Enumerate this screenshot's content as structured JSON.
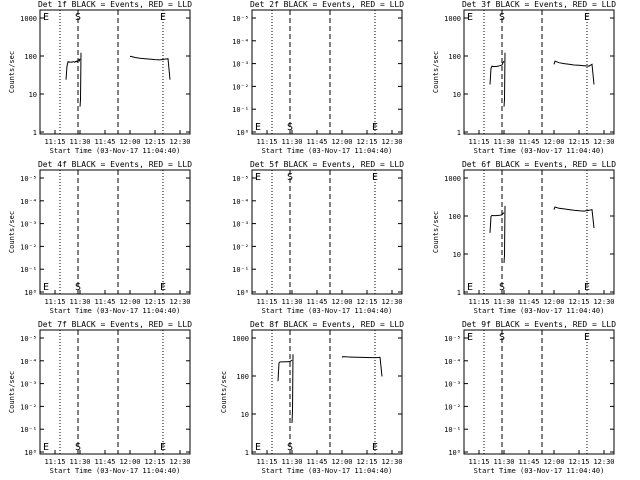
{
  "chart_data": [
    {
      "type": "line",
      "title": "Det 1f BLACK = Events, RED = LLD",
      "ylabel": "Counts/sec",
      "xlabel": "Start Time (03-Nov-17 11:04:40)",
      "y_scale": "log",
      "y_ticks": [
        "1",
        "10",
        "100",
        "1000"
      ],
      "x_ticks": [
        "11:15",
        "11:30",
        "11:45",
        "12:00",
        "12:15",
        "12:30"
      ],
      "markers": [
        "E",
        "S",
        "E"
      ],
      "line_style": "black",
      "series": [
        {
          "x": [
            11.36,
            11.37,
            11.38,
            11.385,
            11.39,
            11.42,
            11.43,
            11.44,
            11.445,
            11.45,
            11.455,
            11.46,
            11.465,
            11.47,
            11.475,
            11.48,
            11.485,
            11.49,
            11.495,
            11.5
          ],
          "y": [
            20,
            45,
            58,
            58,
            57,
            57,
            58,
            58,
            57,
            57,
            59,
            59,
            60,
            58,
            61,
            62,
            64,
            65,
            62,
            70
          ]
        },
        {
          "x": [
            11.5,
            11.505,
            11.51
          ],
          "y": [
            4,
            6,
            100
          ]
        },
        {
          "x": [
            12.0,
            12.01,
            12.05,
            12.1,
            12.15,
            12.2,
            12.25,
            12.3,
            12.35,
            12.38,
            12.4
          ],
          "y": [
            80,
            80,
            75,
            72,
            70,
            68,
            66,
            65,
            68,
            70,
            20
          ]
        }
      ]
    },
    {
      "type": "line",
      "title": "Det 2f BLACK = Events, RED = LLD",
      "ylabel": "",
      "xlabel": "Start Time (03-Nov-17 11:04:40)",
      "y_scale": "log",
      "y_ticks": [
        "10⁰",
        "10⁻¹",
        "10⁻²",
        "10⁻³",
        "10⁻⁴",
        "10⁻⁵"
      ],
      "x_ticks": [
        "11:15",
        "11:30",
        "11:45",
        "12:00",
        "12:15",
        "12:30"
      ],
      "markers": [
        "E",
        "S",
        "E"
      ],
      "line_style": "black",
      "series": []
    },
    {
      "type": "line",
      "title": "Det 3f BLACK = Events, RED = LLD",
      "ylabel": "Counts/sec",
      "xlabel": "Start Time (03-Nov-17 11:04:40)",
      "y_scale": "log",
      "y_ticks": [
        "1",
        "10",
        "100",
        "1000"
      ],
      "x_ticks": [
        "11:15",
        "11:30",
        "11:45",
        "12:00",
        "12:15",
        "12:30"
      ],
      "markers": [
        "E",
        "S",
        "E"
      ],
      "line_style": "black",
      "series": [
        {
          "x": [
            11.36,
            11.37,
            11.38,
            11.39,
            11.42,
            11.44,
            11.46,
            11.48,
            11.49,
            11.5
          ],
          "y": [
            15,
            40,
            45,
            44,
            44,
            45,
            46,
            48,
            55,
            60
          ]
        },
        {
          "x": [
            11.5,
            11.505,
            11.51
          ],
          "y": [
            4,
            6,
            100
          ]
        },
        {
          "x": [
            12.0,
            12.01,
            12.05,
            12.1,
            12.15,
            12.2,
            12.25,
            12.3,
            12.35,
            12.38,
            12.4
          ],
          "y": [
            50,
            60,
            55,
            52,
            50,
            48,
            47,
            46,
            45,
            50,
            15
          ]
        }
      ]
    },
    {
      "type": "line",
      "title": "Det 4f BLACK = Events, RED = LLD",
      "ylabel": "Counts/sec",
      "xlabel": "Start Time (03-Nov-17 11:04:40)",
      "y_scale": "log",
      "y_ticks": [
        "10⁰",
        "10⁻¹",
        "10⁻²",
        "10⁻³",
        "10⁻⁴",
        "10⁻⁵"
      ],
      "x_ticks": [
        "11:15",
        "11:30",
        "11:45",
        "12:00",
        "12:15",
        "12:30"
      ],
      "markers": [
        "E",
        "S",
        "E"
      ],
      "line_style": "black",
      "series": []
    },
    {
      "type": "line",
      "title": "Det 5f BLACK = Events, RED = LLD",
      "ylabel": "",
      "xlabel": "Start Time (03-Nov-17 11:04:40)",
      "y_scale": "log",
      "y_ticks": [
        "10⁰",
        "10⁻¹",
        "10⁻²",
        "10⁻³",
        "10⁻⁴",
        "10⁻⁵"
      ],
      "x_ticks": [
        "11:15",
        "11:30",
        "11:45",
        "12:00",
        "12:15",
        "12:30"
      ],
      "markers": [
        "E",
        "S",
        "E"
      ],
      "line_style": "black",
      "series": []
    },
    {
      "type": "line",
      "title": "Det 6f BLACK = Events, RED = LLD",
      "ylabel": "Counts/sec",
      "xlabel": "Start Time (03-Nov-17 11:04:40)",
      "y_scale": "log",
      "y_ticks": [
        "1",
        "10",
        "100",
        "1000"
      ],
      "x_ticks": [
        "11:15",
        "11:30",
        "11:45",
        "12:00",
        "12:15",
        "12:30"
      ],
      "markers": [
        "E",
        "S",
        "E"
      ],
      "line_style": "black",
      "series": [
        {
          "x": [
            11.36,
            11.37,
            11.38,
            11.39,
            11.42,
            11.44,
            11.46,
            11.48,
            11.49,
            11.5
          ],
          "y": [
            30,
            80,
            85,
            84,
            84,
            85,
            86,
            88,
            95,
            100
          ]
        },
        {
          "x": [
            11.5,
            11.505,
            11.51
          ],
          "y": [
            5,
            8,
            150
          ]
        },
        {
          "x": [
            12.0,
            12.01,
            12.05,
            12.1,
            12.15,
            12.2,
            12.25,
            12.3,
            12.35,
            12.38,
            12.4
          ],
          "y": [
            120,
            140,
            130,
            125,
            120,
            115,
            112,
            110,
            115,
            120,
            40
          ]
        }
      ]
    },
    {
      "type": "line",
      "title": "Det 7f BLACK = Events, RED = LLD",
      "ylabel": "Counts/sec",
      "xlabel": "Start Time (03-Nov-17 11:04:40)",
      "y_scale": "log",
      "y_ticks": [
        "10⁰",
        "10⁻¹",
        "10⁻²",
        "10⁻³",
        "10⁻⁴",
        "10⁻⁵"
      ],
      "x_ticks": [
        "11:15",
        "11:30",
        "11:45",
        "12:00",
        "12:15",
        "12:30"
      ],
      "markers": [
        "E",
        "S",
        "E"
      ],
      "line_style": "black",
      "series": []
    },
    {
      "type": "line",
      "title": "Det 8f BLACK = Events, RED = LLD",
      "ylabel": "Counts/sec",
      "xlabel": "Start Time (03-Nov-17 11:04:40)",
      "y_scale": "log",
      "y_ticks": [
        "1",
        "10",
        "100",
        "1000"
      ],
      "x_ticks": [
        "11:15",
        "11:30",
        "11:45",
        "12:00",
        "12:15",
        "12:30"
      ],
      "markers": [
        "E",
        "S",
        "E"
      ],
      "line_style": "black",
      "series": [
        {
          "x": [
            11.36,
            11.37,
            11.38,
            11.39,
            11.42,
            11.44,
            11.46,
            11.48,
            11.49,
            11.5
          ],
          "y": [
            60,
            180,
            190,
            190,
            190,
            192,
            192,
            195,
            200,
            210
          ]
        },
        {
          "x": [
            11.5,
            11.505,
            11.51
          ],
          "y": [
            5,
            10,
            300
          ]
        },
        {
          "x": [
            12.0,
            12.01,
            12.05,
            12.1,
            12.15,
            12.2,
            12.25,
            12.3,
            12.35,
            12.38,
            12.4
          ],
          "y": [
            250,
            260,
            255,
            252,
            250,
            248,
            247,
            246,
            245,
            250,
            80
          ]
        }
      ]
    },
    {
      "type": "line",
      "title": "Det 9f BLACK = Events, RED = LLD",
      "ylabel": "",
      "xlabel": "Start Time (03-Nov-17 11:04:40)",
      "y_scale": "log",
      "y_ticks": [
        "10⁰",
        "10⁻¹",
        "10⁻²",
        "10⁻³",
        "10⁻⁴",
        "10⁻⁵"
      ],
      "x_ticks": [
        "11:15",
        "11:30",
        "11:45",
        "12:00",
        "12:15",
        "12:30"
      ],
      "markers": [
        "E",
        "S",
        "E"
      ],
      "line_style": "black",
      "series": []
    }
  ]
}
